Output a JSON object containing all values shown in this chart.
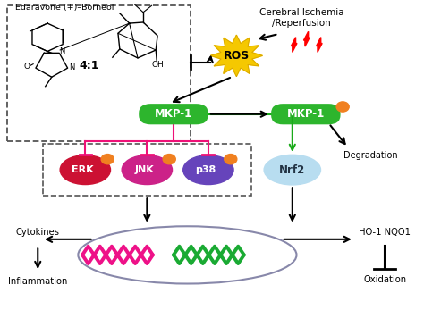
{
  "bg_color": "#ffffff",
  "mkp1_color": "#2db52d",
  "erk_color": "#cc1133",
  "jnk_color": "#cc2288",
  "p38_color": "#6644bb",
  "nrf2_color": "#b8ddf0",
  "ros_color": "#f5c800",
  "orange_dot": "#f08020",
  "pink_line_color": "#ee1177",
  "green_arrow_color": "#1aaa1a",
  "dna_pink": "#ee1188",
  "dna_green": "#1aaa33",
  "nucleus_edge": "#8888aa",
  "edaravone_text": "Edaravone (+)–Borneol",
  "ratio_text": "4:1",
  "oh_text": "OH",
  "cerebral_text": "Cerebral Ischemia\n/Reperfusion",
  "mkp1_text": "MKP-1",
  "degradation_text": "Degradation",
  "cytokines_text": "Cytokines",
  "inflammation_text": "Inflammation",
  "ho1_text": "HO-1 NQO1",
  "oxidation_text": "Oxidation"
}
